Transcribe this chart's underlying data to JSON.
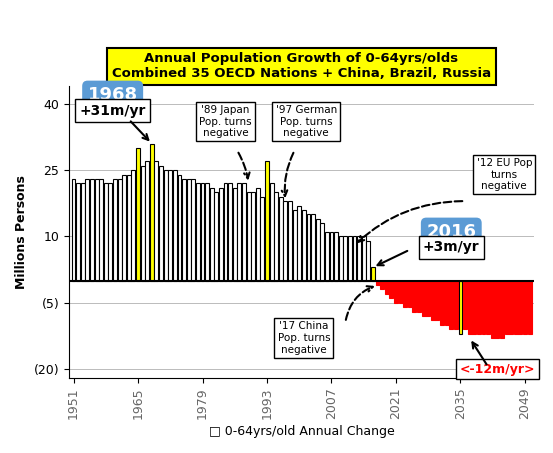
{
  "title_line1": "Annual Population Growth of 0-64yrs/olds",
  "title_line2": "Combined 35 OECD Nations + China, Brazil, Russia",
  "xlabel": "□ 0-64yrs/old Annual Change",
  "ylabel": "Millions Persons",
  "xlim": [
    1950,
    2051
  ],
  "ylim": [
    -22,
    44
  ],
  "yticks": [
    -20,
    -5,
    10,
    25,
    40
  ],
  "ytick_labels": [
    "(20)",
    "(5)",
    "10",
    "25",
    "40"
  ],
  "xticks": [
    1951,
    1965,
    1979,
    1993,
    2007,
    2021,
    2035,
    2049
  ],
  "historical_years": [
    1951,
    1952,
    1953,
    1954,
    1955,
    1956,
    1957,
    1958,
    1959,
    1960,
    1961,
    1962,
    1963,
    1964,
    1965,
    1966,
    1967,
    1968,
    1969,
    1970,
    1971,
    1972,
    1973,
    1974,
    1975,
    1976,
    1977,
    1978,
    1979,
    1980,
    1981,
    1982,
    1983,
    1984,
    1985,
    1986,
    1987,
    1988,
    1989,
    1990,
    1991,
    1992,
    1993,
    1994,
    1995,
    1996,
    1997,
    1998,
    1999,
    2000,
    2001,
    2002,
    2003,
    2004,
    2005,
    2006,
    2007,
    2008,
    2009,
    2010,
    2011,
    2012,
    2013,
    2014,
    2015,
    2016
  ],
  "historical_values": [
    23,
    22,
    22,
    23,
    23,
    23,
    23,
    22,
    22,
    23,
    23,
    24,
    24,
    25,
    30,
    26,
    27,
    31,
    27,
    26,
    25,
    25,
    25,
    24,
    23,
    23,
    23,
    22,
    22,
    22,
    21,
    20,
    21,
    22,
    22,
    21,
    22,
    22,
    20,
    20,
    21,
    19,
    27,
    22,
    20,
    19,
    18,
    18,
    16,
    17,
    16,
    15,
    15,
    14,
    13,
    11,
    11,
    11,
    10,
    10,
    10,
    10,
    10,
    10,
    9,
    3
  ],
  "historical_colors_yellow": [
    1965,
    1968,
    1993,
    2016
  ],
  "forecast_years": [
    2017,
    2018,
    2019,
    2020,
    2021,
    2022,
    2023,
    2024,
    2025,
    2026,
    2027,
    2028,
    2029,
    2030,
    2031,
    2032,
    2033,
    2034,
    2035,
    2036,
    2037,
    2038,
    2039,
    2040,
    2041,
    2042,
    2043,
    2044,
    2045,
    2046,
    2047,
    2048,
    2049,
    2050
  ],
  "forecast_values": [
    -1,
    -2,
    -3,
    -4,
    -5,
    -5,
    -6,
    -6,
    -7,
    -7,
    -8,
    -8,
    -9,
    -9,
    -10,
    -10,
    -11,
    -11,
    -12,
    -11,
    -12,
    -12,
    -12,
    -12,
    -12,
    -13,
    -13,
    -13,
    -12,
    -12,
    -12,
    -12,
    -12,
    -12
  ],
  "forecast_colors_yellow": [
    2035
  ],
  "bg_color": "#ffffff",
  "title_bg": "#ffff00",
  "bar_fill_white": "#ffffff",
  "bar_color_yellow": "#ffff00",
  "bar_color_red": "#ff0000",
  "bar_edge_black": "#000000",
  "bar_edge_red": "#ff0000",
  "blue_box_color": "#5b9bd5",
  "annotation_1968_label": "1968",
  "annotation_1968_sub": "+31m/yr",
  "annotation_2016_label": "2016",
  "annotation_2016_sub": "+3m/yr",
  "annotation_neg12_text": "<-12m/yr>",
  "annot_japan_text": "'89 Japan\nPop. turns\nnegative",
  "annot_german_text": "'97 German\nPop. turns\nnegative",
  "annot_eu_text": "'12 EU Pop\nturns\nnegative",
  "annot_china_text": "'17 China\nPop. turns\nnegative"
}
